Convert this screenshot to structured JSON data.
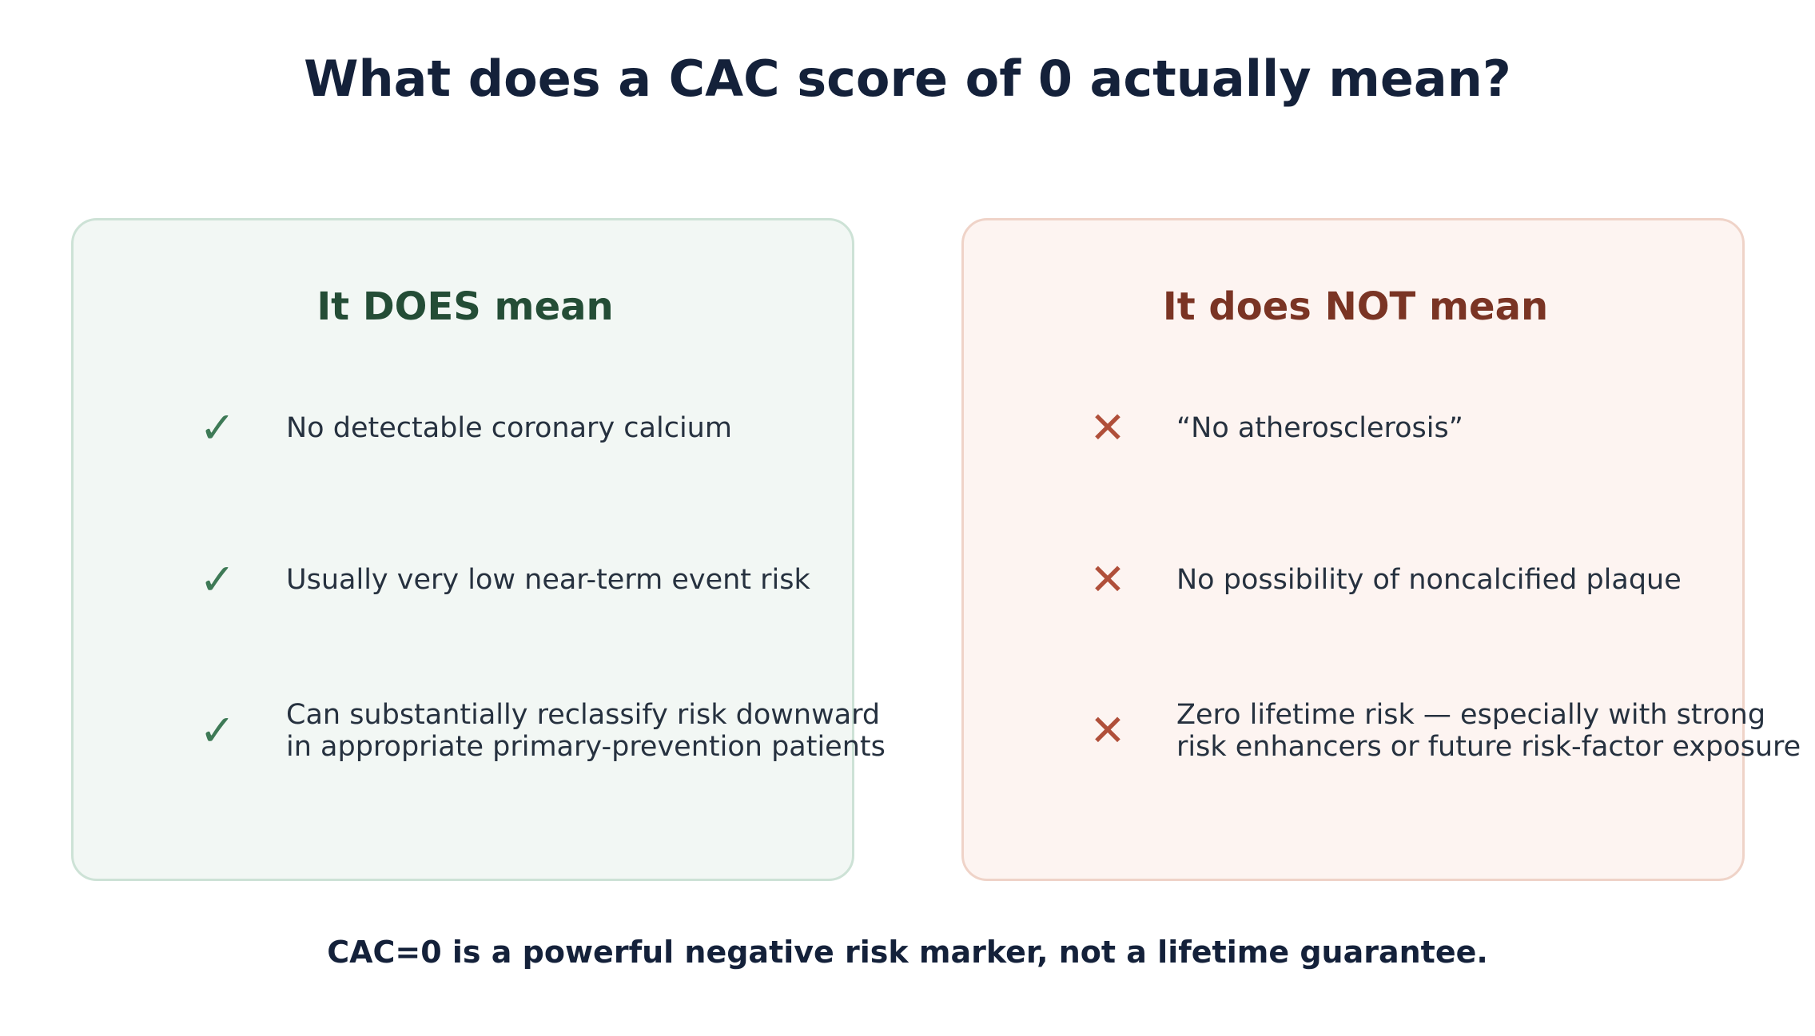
{
  "title": "What does a CAC score of 0 actually mean?",
  "does_panel": {
    "heading": "It DOES mean",
    "icon": "check-mark",
    "icon_glyph": "✓",
    "accent_color": "#3e7a56",
    "items": [
      {
        "text": "No detectable coronary calcium"
      },
      {
        "text": "Usually very low near-term event risk"
      },
      {
        "text": "Can substantially reclassify risk downward\nin appropriate primary-prevention patients"
      }
    ]
  },
  "not_panel": {
    "heading": "It does NOT mean",
    "icon": "cross-mark",
    "icon_glyph": "✕",
    "accent_color": "#b04f3a",
    "items": [
      {
        "text": "“No atherosclerosis”"
      },
      {
        "text": "No possibility of noncalcified plaque"
      },
      {
        "text": "Zero lifetime risk — especially with strong\nrisk enhancers or future risk-factor exposure"
      }
    ]
  },
  "footer": "CAC=0 is a powerful negative risk marker, not a lifetime guarantee."
}
